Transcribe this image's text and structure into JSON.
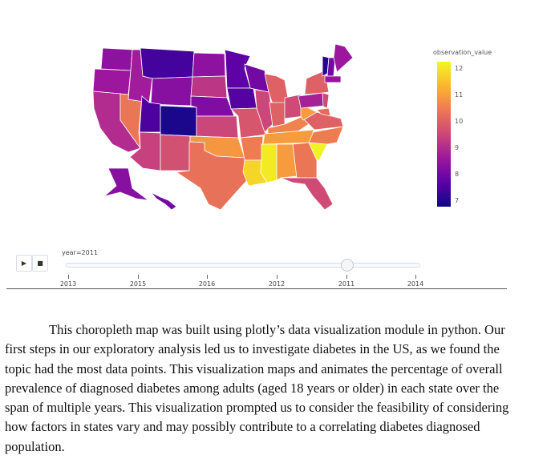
{
  "figure": {
    "colorbar": {
      "title": "observation_value",
      "ticks": [
        "12",
        "11",
        "10",
        "9",
        "8",
        "7"
      ],
      "range": [
        6.75,
        12.3
      ],
      "colorscale": [
        "#0d0887",
        "#5c01a6",
        "#9c179e",
        "#cc4778",
        "#ed7953",
        "#fdb42f",
        "#f0f921"
      ]
    },
    "state_values": {
      "WA": 8.4,
      "OR": 8.6,
      "CA": 9.0,
      "NV": 10.4,
      "ID": 8.7,
      "MT": 7.4,
      "WY": 8.3,
      "UT": 7.5,
      "CO": 6.9,
      "AZ": 9.4,
      "NM": 9.7,
      "ND": 8.4,
      "SD": 9.2,
      "NE": 8.2,
      "KS": 9.5,
      "OK": 10.9,
      "TX": 10.3,
      "MN": 7.7,
      "IA": 7.6,
      "MO": 9.8,
      "AR": 10.5,
      "LA": 11.8,
      "WI": 8.0,
      "IL": 9.5,
      "MI": 10.0,
      "IN": 10.0,
      "OH": 9.6,
      "KY": 10.6,
      "TN": 11.0,
      "MS": 12.1,
      "AL": 11.0,
      "GA": 10.4,
      "FL": 9.6,
      "SC": 12.2,
      "NC": 10.5,
      "VA": 10.0,
      "WV": 11.0,
      "PA": 8.8,
      "NY": 10.0,
      "VT": 7.0,
      "NH": 8.0,
      "ME": 8.6,
      "MA": 8.5,
      "NJ": 9.6,
      "MD": 10.2,
      "AK": 8.3,
      "HI": 8.0
    },
    "slider": {
      "current_label": "year=2011",
      "play_icon": "play-icon",
      "stop_icon": "stop-icon",
      "steps": [
        "2013",
        "2015",
        "2016",
        "2012",
        "2011",
        "2014"
      ],
      "active_step": "2011"
    }
  },
  "paragraph": {
    "lines": [
      "This choropleth map was built using plotly’s data visualization module in python. Our",
      "first steps in our exploratory analysis led us to investigate diabetes in the US, as we found the",
      "topic had the most data points. This visualization maps and animates the percentage of overall",
      "prevalence of diagnosed diabetes among adults (aged 18 years or older) in each state over the",
      "span of multiple years. This visualization prompted us to consider the feasibility of considering",
      "how factors in states vary and may possibly contribute to a correlating diabetes diagnosed",
      "population."
    ]
  }
}
